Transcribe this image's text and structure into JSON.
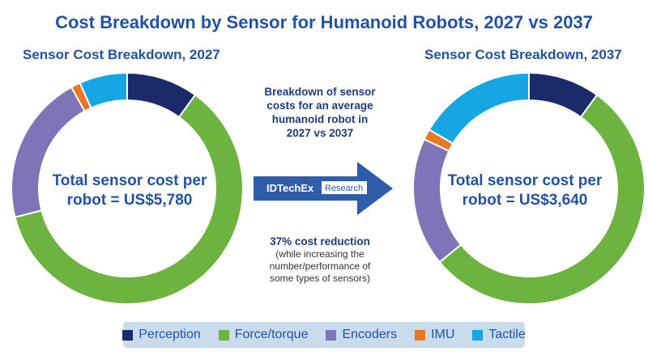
{
  "title": "Cost Breakdown by Sensor for Humanoid Robots, 2027 vs 2037",
  "middle": {
    "top_lines": [
      "Breakdown of sensor",
      "costs for an average",
      "humanoid robot in",
      "2027 vs 2037"
    ],
    "arrow_brand": "IDTechEx",
    "arrow_brand_suffix": "Research",
    "bottom_bold": "37% cost reduction",
    "bottom_lines": [
      "(while increasing the",
      "number/performance of",
      "some types of sensors)"
    ]
  },
  "chart_data": [
    {
      "type": "pie",
      "donut": true,
      "title": "Sensor Cost Breakdown, 2027",
      "center_lines": [
        "Total sensor cost per",
        "robot = US$5,780"
      ],
      "total_usd": 5780,
      "categories": [
        "Perception",
        "Force/torque",
        "Encoders",
        "IMU",
        "Tactile"
      ],
      "values_percent": [
        10,
        61,
        21,
        1.3,
        6.7
      ]
    },
    {
      "type": "pie",
      "donut": true,
      "title": "Sensor Cost Breakdown, 2037",
      "center_lines": [
        "Total sensor cost per",
        "robot = US$3,640"
      ],
      "total_usd": 3640,
      "categories": [
        "Perception",
        "Force/torque",
        "Encoders",
        "IMU",
        "Tactile"
      ],
      "values_percent": [
        10,
        54,
        18,
        1.5,
        16.5
      ]
    }
  ],
  "legend": [
    {
      "label": "Perception",
      "color": "#1b2a6b"
    },
    {
      "label": "Force/torque",
      "color": "#6cb33f"
    },
    {
      "label": "Encoders",
      "color": "#8074b8"
    },
    {
      "label": "IMU",
      "color": "#e87722"
    },
    {
      "label": "Tactile",
      "color": "#16a6e3"
    }
  ]
}
